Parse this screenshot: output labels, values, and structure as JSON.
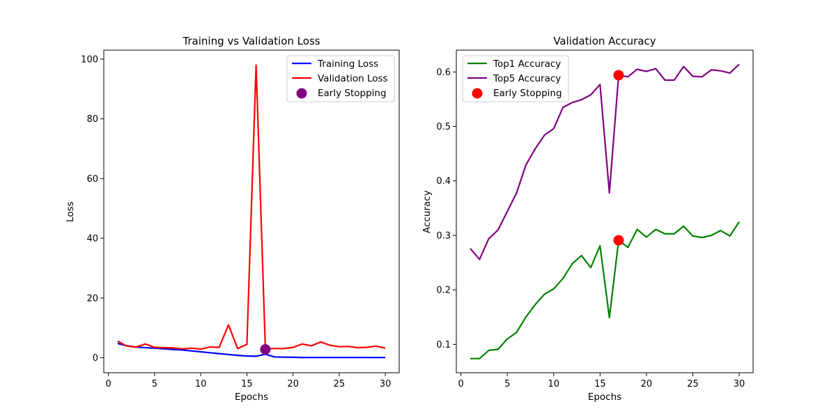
{
  "chart_data": [
    {
      "type": "line",
      "title": "Training vs Validation Loss",
      "xlabel": "Epochs",
      "ylabel": "Loss",
      "xlim": [
        -0.5,
        31.5
      ],
      "ylim": [
        -5,
        103
      ],
      "xticks": [
        0,
        5,
        10,
        15,
        20,
        25,
        30
      ],
      "yticks": [
        0,
        20,
        40,
        60,
        80,
        100
      ],
      "grid": false,
      "legend_position": "top-right",
      "x": [
        1,
        2,
        3,
        4,
        5,
        6,
        7,
        8,
        9,
        10,
        11,
        12,
        13,
        14,
        15,
        16,
        17,
        18,
        19,
        20,
        21,
        22,
        23,
        24,
        25,
        26,
        27,
        28,
        29,
        30
      ],
      "series": [
        {
          "name": "Training Loss",
          "color": "#0000ff",
          "values": [
            4.8,
            4.0,
            3.6,
            3.4,
            3.2,
            3.0,
            2.8,
            2.6,
            2.3,
            2.0,
            1.7,
            1.4,
            1.1,
            0.8,
            0.6,
            0.5,
            1.2,
            0.3,
            0.2,
            0.15,
            0.12,
            0.12,
            0.12,
            0.12,
            0.1,
            0.1,
            0.1,
            0.08,
            0.08,
            0.08
          ]
        },
        {
          "name": "Validation Loss",
          "color": "#ff0000",
          "values": [
            5.6,
            3.9,
            3.6,
            4.6,
            3.5,
            3.4,
            3.3,
            3.0,
            3.2,
            2.9,
            3.6,
            3.5,
            11.0,
            3.1,
            4.5,
            98.0,
            3.0,
            3.1,
            3.1,
            3.5,
            4.6,
            4.0,
            5.3,
            4.2,
            3.7,
            3.8,
            3.4,
            3.5,
            3.9,
            3.2
          ]
        }
      ],
      "markers": [
        {
          "name": "Early Stopping",
          "color": "#800080",
          "x": 17,
          "y": 2.8
        }
      ]
    },
    {
      "type": "line",
      "title": "Validation Accuracy",
      "xlabel": "Epochs",
      "ylabel": "Accuracy",
      "xlim": [
        -0.5,
        31.5
      ],
      "ylim": [
        0.048,
        0.64
      ],
      "xticks": [
        0,
        5,
        10,
        15,
        20,
        25,
        30
      ],
      "yticks": [
        0.1,
        0.2,
        0.3,
        0.4,
        0.5,
        0.6
      ],
      "grid": false,
      "legend_position": "top-left",
      "x": [
        1,
        2,
        3,
        4,
        5,
        6,
        7,
        8,
        9,
        10,
        11,
        12,
        13,
        14,
        15,
        16,
        17,
        18,
        19,
        20,
        21,
        22,
        23,
        24,
        25,
        26,
        27,
        28,
        29,
        30
      ],
      "series": [
        {
          "name": "Top1 Accuracy",
          "color": "#008000",
          "values": [
            0.074,
            0.074,
            0.089,
            0.091,
            0.11,
            0.122,
            0.15,
            0.173,
            0.192,
            0.202,
            0.221,
            0.248,
            0.263,
            0.241,
            0.281,
            0.149,
            0.291,
            0.278,
            0.311,
            0.297,
            0.311,
            0.303,
            0.303,
            0.317,
            0.299,
            0.296,
            0.3,
            0.309,
            0.299,
            0.325
          ]
        },
        {
          "name": "Top5 Accuracy",
          "color": "#800080",
          "values": [
            0.276,
            0.256,
            0.294,
            0.31,
            0.344,
            0.378,
            0.429,
            0.459,
            0.484,
            0.496,
            0.535,
            0.544,
            0.549,
            0.558,
            0.577,
            0.378,
            0.594,
            0.591,
            0.605,
            0.601,
            0.606,
            0.585,
            0.585,
            0.61,
            0.592,
            0.591,
            0.604,
            0.602,
            0.598,
            0.614
          ]
        }
      ],
      "markers": [
        {
          "name": "Early Stopping",
          "color": "#ff0000",
          "x": 17,
          "y": 0.291
        },
        {
          "name": "",
          "color": "#ff0000",
          "x": 17,
          "y": 0.594
        }
      ]
    }
  ]
}
